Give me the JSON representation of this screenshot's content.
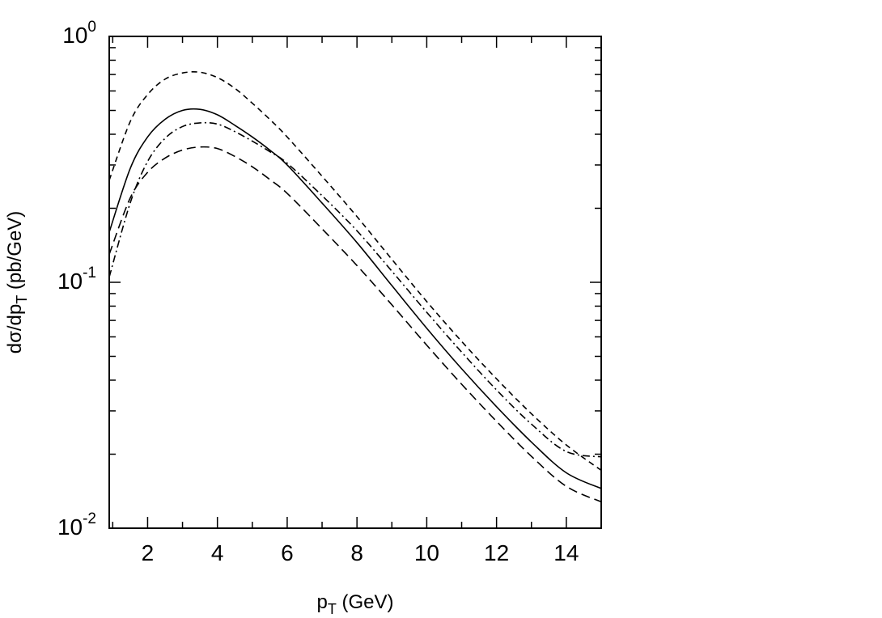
{
  "chart_data": {
    "type": "line",
    "xlabel": "p",
    "xlabel_sub": "T",
    "xlabel_unit": " (GeV)",
    "ylabel": "dσ/dp",
    "ylabel_sub": "T",
    "ylabel_unit": " (pb/GeV)",
    "xlim": [
      0.9,
      15
    ],
    "ylim": [
      0.01,
      1
    ],
    "yscale": "log",
    "grid": false,
    "legend": "none",
    "x_ticks": [
      2,
      4,
      6,
      8,
      10,
      12,
      14
    ],
    "x_tick_labels": [
      "2",
      "4",
      "6",
      "8",
      "10",
      "12",
      "14"
    ],
    "y_ticks": [
      0.01,
      0.1,
      1
    ],
    "y_tick_labels": [
      {
        "base": "10",
        "exp": "-2"
      },
      {
        "base": "10",
        "exp": "-1"
      },
      {
        "base": "10",
        "exp": "0"
      }
    ],
    "x": [
      0.9,
      1.5,
      2,
      2.5,
      3,
      3.5,
      4,
      4.5,
      5,
      5.5,
      6,
      7,
      8,
      9,
      10,
      11,
      12,
      13,
      14,
      15
    ],
    "series": [
      {
        "style": "short-dash",
        "color": "#000000",
        "values": [
          0.26,
          0.45,
          0.58,
          0.67,
          0.71,
          0.715,
          0.68,
          0.615,
          0.535,
          0.46,
          0.39,
          0.27,
          0.185,
          0.124,
          0.0835,
          0.0575,
          0.0405,
          0.0292,
          0.0218,
          0.0172
        ]
      },
      {
        "style": "solid",
        "color": "#000000",
        "values": [
          0.16,
          0.29,
          0.39,
          0.46,
          0.5,
          0.505,
          0.48,
          0.435,
          0.39,
          0.345,
          0.3,
          0.21,
          0.145,
          0.097,
          0.065,
          0.0445,
          0.0312,
          0.0224,
          0.0168,
          0.0145
        ]
      },
      {
        "style": "dash-dot",
        "color": "#000000",
        "values": [
          0.105,
          0.21,
          0.31,
          0.385,
          0.43,
          0.445,
          0.44,
          0.41,
          0.375,
          0.34,
          0.305,
          0.225,
          0.162,
          0.111,
          0.0755,
          0.052,
          0.0365,
          0.0265,
          0.0205,
          0.0195
        ]
      },
      {
        "style": "long-dash",
        "color": "#000000",
        "values": [
          0.13,
          0.22,
          0.28,
          0.32,
          0.345,
          0.355,
          0.35,
          0.325,
          0.295,
          0.262,
          0.23,
          0.165,
          0.117,
          0.081,
          0.0555,
          0.0385,
          0.0272,
          0.0196,
          0.0148,
          0.0128
        ]
      }
    ]
  }
}
